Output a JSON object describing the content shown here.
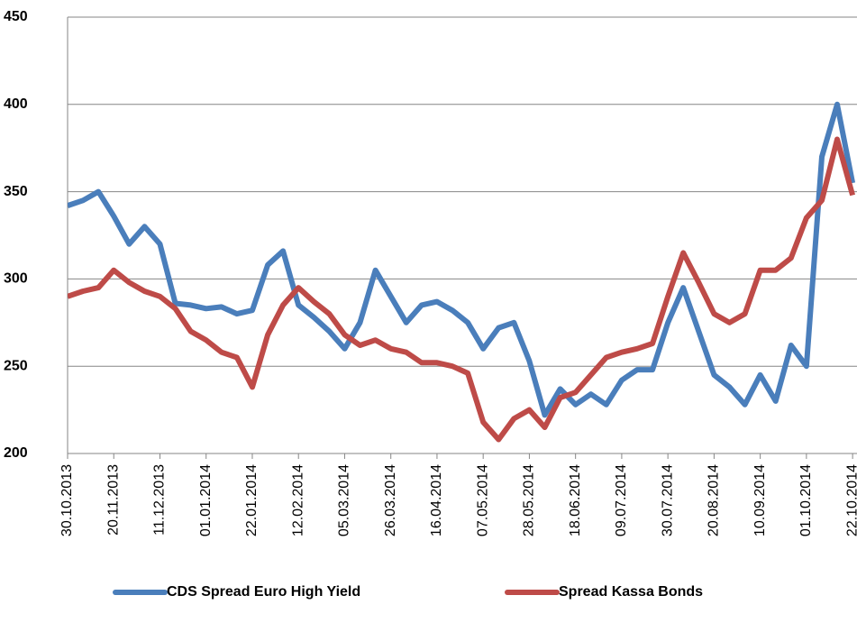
{
  "chart_data": {
    "type": "line",
    "x": [
      "30.10.2013",
      "06.11.2013",
      "13.11.2013",
      "20.11.2013",
      "27.11.2013",
      "04.12.2013",
      "11.12.2013",
      "18.12.2013",
      "25.12.2013",
      "01.01.2014",
      "08.01.2014",
      "15.01.2014",
      "22.01.2014",
      "29.01.2014",
      "05.02.2014",
      "12.02.2014",
      "19.02.2014",
      "26.02.2014",
      "05.03.2014",
      "12.03.2014",
      "19.03.2014",
      "26.03.2014",
      "02.04.2014",
      "09.04.2014",
      "16.04.2014",
      "23.04.2014",
      "30.04.2014",
      "07.05.2014",
      "14.05.2014",
      "21.05.2014",
      "28.05.2014",
      "04.06.2014",
      "11.06.2014",
      "18.06.2014",
      "25.06.2014",
      "02.07.2014",
      "09.07.2014",
      "16.07.2014",
      "23.07.2014",
      "30.07.2014",
      "06.08.2014",
      "13.08.2014",
      "20.08.2014",
      "27.08.2014",
      "03.09.2014",
      "10.09.2014",
      "17.09.2014",
      "24.09.2014",
      "01.10.2014",
      "08.10.2014",
      "15.10.2014",
      "22.10.2014"
    ],
    "series": [
      {
        "name": "CDS Spread Euro High Yield",
        "color": "#4a7ebb",
        "values": [
          342,
          345,
          350,
          336,
          320,
          330,
          320,
          286,
          285,
          283,
          284,
          280,
          282,
          308,
          316,
          285,
          278,
          270,
          260,
          275,
          305,
          290,
          275,
          285,
          287,
          282,
          275,
          260,
          272,
          275,
          253,
          222,
          237,
          228,
          234,
          228,
          242,
          248,
          248,
          275,
          295,
          270,
          245,
          238,
          228,
          245,
          230,
          262,
          250,
          370,
          400,
          355
        ]
      },
      {
        "name": "Spread Kassa Bonds",
        "color": "#be4b48",
        "values": [
          290,
          293,
          295,
          305,
          298,
          293,
          290,
          283,
          270,
          265,
          258,
          255,
          238,
          268,
          285,
          295,
          287,
          280,
          268,
          262,
          265,
          260,
          258,
          252,
          252,
          250,
          246,
          218,
          208,
          220,
          225,
          215,
          232,
          235,
          245,
          255,
          258,
          260,
          263,
          290,
          315,
          298,
          280,
          275,
          280,
          305,
          305,
          312,
          335,
          345,
          380,
          348
        ]
      }
    ],
    "xlim": [
      "30.10.2013",
      "24.10.2014"
    ],
    "xticks": [
      "30.10.2013",
      "20.11.2013",
      "11.12.2013",
      "01.01.2014",
      "22.01.2014",
      "12.02.2014",
      "05.03.2014",
      "26.03.2014",
      "16.04.2014",
      "07.05.2014",
      "28.05.2014",
      "18.06.2014",
      "09.07.2014",
      "30.07.2014",
      "20.08.2014",
      "10.09.2014",
      "01.10.2014",
      "22.10.2014"
    ],
    "ylim": [
      200,
      450
    ],
    "yticks": [
      200,
      250,
      300,
      350,
      400,
      450
    ],
    "grid": true,
    "legend": "bottom"
  }
}
